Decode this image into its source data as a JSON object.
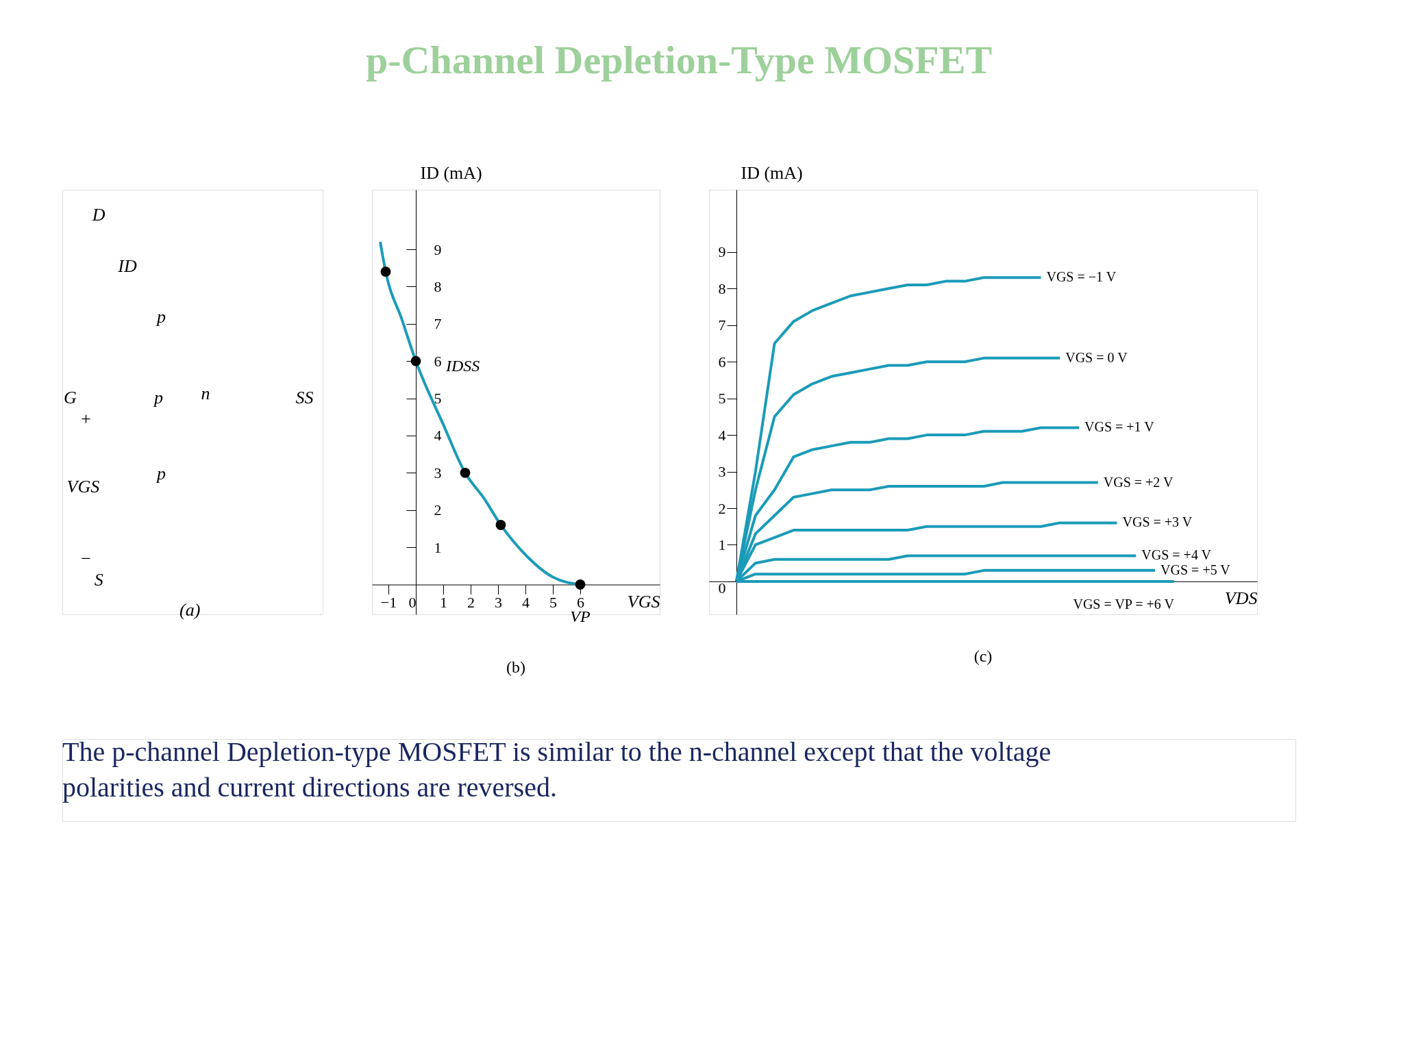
{
  "chart_data": [
    {
      "type": "other",
      "title": "p-Channel Depletion-Type MOSFET",
      "annotations": [
        "D",
        "ID",
        "G",
        "+",
        "p",
        "p",
        "p",
        "n",
        "SS",
        "VGS",
        "−",
        "S",
        "(a)",
        "The p-channel Depletion-type MOSFET is similar to the  n-channel except that the voltage polarities and current directions are reversed."
      ]
    },
    {
      "type": "line",
      "xlabel": "VGS",
      "ylabel": "ID (mA)",
      "xlim": [
        -1.6,
        8.9
      ],
      "ylim": [
        -0.8,
        10.6
      ],
      "xticks": [
        -1,
        0,
        1,
        2,
        3,
        4,
        5,
        6
      ],
      "yticks": [
        1,
        2,
        3,
        4,
        5,
        6,
        7,
        8,
        9
      ],
      "grid": false,
      "series": [
        {
          "type": "line",
          "color": "#1a9bb8",
          "x": [
            -1.3,
            -1.1,
            -0.5,
            0,
            1,
            1.8,
            2.5,
            3.1,
            4,
            5,
            6
          ],
          "values": [
            9.2,
            8.4,
            7.1,
            6.0,
            4.3,
            3.0,
            2.3,
            1.6,
            0.8,
            0.2,
            0
          ]
        },
        {
          "type": "scatter",
          "color": "#000000",
          "marker": "circle",
          "x": [
            -1.1,
            0,
            1.8,
            3.1,
            6
          ],
          "values": [
            8.4,
            6.0,
            3.0,
            1.6,
            0
          ]
        }
      ],
      "annotations": [
        {
          "text": "IDSS",
          "x": 0,
          "y": 6
        },
        {
          "text": "VP",
          "x": 6,
          "y": 0
        },
        "(b)"
      ]
    },
    {
      "type": "line",
      "xlabel": "VDS",
      "ylabel": "ID (mA)",
      "categories": [
        null,
        null,
        null,
        null,
        null,
        null,
        null,
        null,
        null,
        null,
        null,
        null,
        null,
        null,
        null,
        null,
        null,
        null,
        null,
        null,
        null,
        null,
        null,
        null
      ],
      "ylim": [
        -0.9,
        10.7
      ],
      "yticks": [
        0,
        1,
        2,
        3,
        4,
        5,
        6,
        7,
        8,
        9
      ],
      "tick_labels": "y",
      "series": [
        {
          "type": "line",
          "name": "VGS = −1 V",
          "color": "#1a9bb8",
          "values": [
            0,
            3.0,
            6.5,
            7.1,
            7.4,
            7.6,
            7.8,
            7.9,
            8.0,
            8.1,
            8.1,
            8.2,
            8.2,
            8.3,
            8.3,
            8.3,
            8.3,
            null,
            null,
            null,
            null,
            null,
            null,
            null
          ]
        },
        {
          "type": "line",
          "name": "VGS = 0 V",
          "color": "#1a9bb8",
          "values": [
            0,
            2.5,
            4.5,
            5.1,
            5.4,
            5.6,
            5.7,
            5.8,
            5.9,
            5.9,
            6.0,
            6.0,
            6.0,
            6.1,
            6.1,
            6.1,
            6.1,
            6.1,
            null,
            null,
            null,
            null,
            null,
            null
          ]
        },
        {
          "type": "line",
          "name": "VGS = +1 V",
          "color": "#1a9bb8",
          "values": [
            0,
            1.8,
            2.5,
            3.4,
            3.6,
            3.7,
            3.8,
            3.8,
            3.9,
            3.9,
            4.0,
            4.0,
            4.0,
            4.1,
            4.1,
            4.1,
            4.2,
            4.2,
            4.2,
            null,
            null,
            null,
            null,
            null
          ]
        },
        {
          "type": "line",
          "name": "VGS = +2 V",
          "color": "#1a9bb8",
          "values": [
            0,
            1.3,
            1.8,
            2.3,
            2.4,
            2.5,
            2.5,
            2.5,
            2.6,
            2.6,
            2.6,
            2.6,
            2.6,
            2.6,
            2.7,
            2.7,
            2.7,
            2.7,
            2.7,
            2.7,
            null,
            null,
            null,
            null
          ]
        },
        {
          "type": "line",
          "name": "VGS = +3 V",
          "color": "#1a9bb8",
          "values": [
            0,
            1.0,
            1.2,
            1.4,
            1.4,
            1.4,
            1.4,
            1.4,
            1.4,
            1.4,
            1.5,
            1.5,
            1.5,
            1.5,
            1.5,
            1.5,
            1.5,
            1.6,
            1.6,
            1.6,
            1.6,
            null,
            null,
            null
          ]
        },
        {
          "type": "line",
          "name": "VGS = +4 V",
          "color": "#1a9bb8",
          "values": [
            0,
            0.5,
            0.6,
            0.6,
            0.6,
            0.6,
            0.6,
            0.6,
            0.6,
            0.7,
            0.7,
            0.7,
            0.7,
            0.7,
            0.7,
            0.7,
            0.7,
            0.7,
            0.7,
            0.7,
            0.7,
            0.7,
            null,
            null
          ]
        },
        {
          "type": "line",
          "name": "VGS = +5 V",
          "color": "#1a9bb8",
          "values": [
            0,
            0.2,
            0.2,
            0.2,
            0.2,
            0.2,
            0.2,
            0.2,
            0.2,
            0.2,
            0.2,
            0.2,
            0.2,
            0.3,
            0.3,
            0.3,
            0.3,
            0.3,
            0.3,
            0.3,
            0.3,
            0.3,
            0.3,
            null
          ]
        },
        {
          "type": "line",
          "name": "VGS = VP = +6 V",
          "color": "#1a9bb8",
          "values": [
            0,
            0,
            0,
            0,
            0,
            0,
            0,
            0,
            0,
            0,
            0,
            0,
            0,
            0,
            0,
            0,
            0,
            0,
            0,
            0,
            0,
            0,
            0,
            0
          ]
        }
      ],
      "annotations": [
        "(c)"
      ]
    }
  ]
}
